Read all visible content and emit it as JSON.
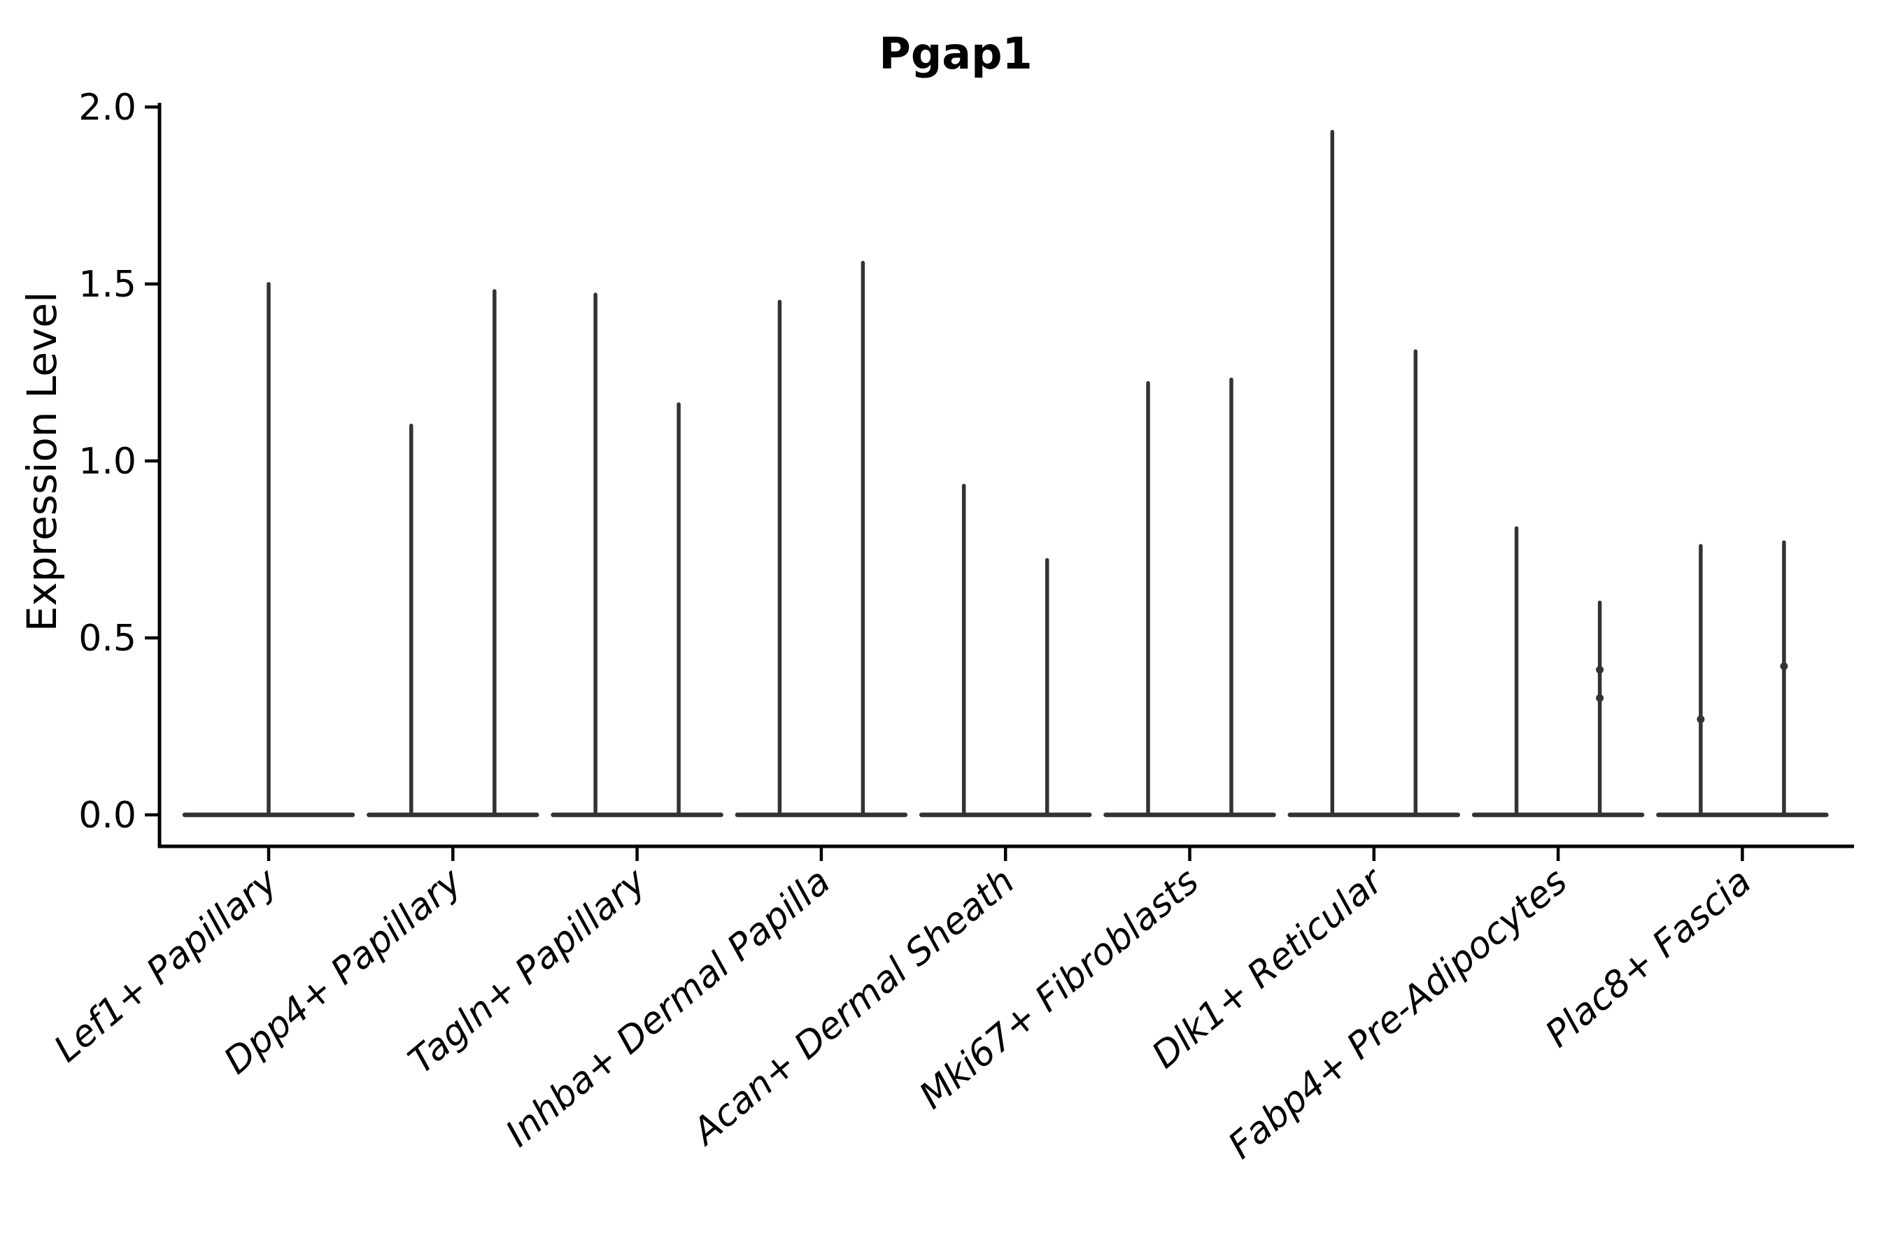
{
  "chart_data": {
    "type": "violin",
    "title": "Pgap1",
    "ylabel": "Expression Level",
    "xlabel": "",
    "ylim": [
      -0.07,
      2.04
    ],
    "yticks": [
      "0.0",
      "0.5",
      "1.0",
      "1.5",
      "2.0"
    ],
    "ytick_values": [
      0.0,
      0.5,
      1.0,
      1.5,
      2.0
    ],
    "grid": false,
    "legend": null,
    "categories": [
      "Lef1+ Papillary",
      "Dpp4+ Papillary",
      "Tagln+ Papillary",
      "Inhba+ Dermal Papilla",
      "Acan+ Dermal Sheath",
      "Mki67+ Fibroblasts",
      "Dlk1+ Reticular",
      "Fabp4+ Pre-Adipocytes",
      "Plac8+ Fascia"
    ],
    "groups": [
      {
        "category": "Lef1+ Papillary",
        "violins": [
          {
            "pos": 0,
            "max": 1.5,
            "bumps": []
          }
        ]
      },
      {
        "category": "Dpp4+ Papillary",
        "violins": [
          {
            "pos": -1,
            "max": 1.1,
            "bumps": []
          },
          {
            "pos": 1,
            "max": 1.48,
            "bumps": []
          }
        ]
      },
      {
        "category": "Tagln+ Papillary",
        "violins": [
          {
            "pos": -1,
            "max": 1.47,
            "bumps": []
          },
          {
            "pos": 1,
            "max": 1.16,
            "bumps": []
          }
        ]
      },
      {
        "category": "Inhba+ Dermal Papilla",
        "violins": [
          {
            "pos": -1,
            "max": 1.45,
            "bumps": []
          },
          {
            "pos": 1,
            "max": 1.56,
            "bumps": []
          }
        ]
      },
      {
        "category": "Acan+ Dermal Sheath",
        "violins": [
          {
            "pos": -1,
            "max": 0.93,
            "bumps": []
          },
          {
            "pos": 1,
            "max": 0.72,
            "bumps": []
          }
        ]
      },
      {
        "category": "Mki67+ Fibroblasts",
        "violins": [
          {
            "pos": -1,
            "max": 1.22,
            "bumps": []
          },
          {
            "pos": 1,
            "max": 1.23,
            "bumps": []
          }
        ]
      },
      {
        "category": "Dlk1+ Reticular",
        "violins": [
          {
            "pos": -1,
            "max": 1.93,
            "bumps": []
          },
          {
            "pos": 1,
            "max": 1.31,
            "bumps": []
          }
        ]
      },
      {
        "category": "Fabp4+ Pre-Adipocytes",
        "violins": [
          {
            "pos": -1,
            "max": 0.81,
            "bumps": []
          },
          {
            "pos": 1,
            "max": 0.6,
            "bumps": [
              0.41,
              0.33
            ]
          }
        ]
      },
      {
        "category": "Plac8+ Fascia",
        "violins": [
          {
            "pos": -1,
            "max": 0.76,
            "bumps": [
              0.27
            ]
          },
          {
            "pos": 1,
            "max": 0.77,
            "bumps": [
              0.42
            ]
          }
        ]
      }
    ],
    "colors": {
      "violin_line": "#333333",
      "axis": "#000000",
      "background": "#ffffff"
    }
  }
}
